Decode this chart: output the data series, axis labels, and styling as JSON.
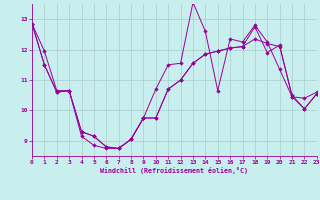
{
  "xlabel": "Windchill (Refroidissement éolien,°C)",
  "bg_color": "#c8eeee",
  "line_color": "#990099",
  "grid_color": "#aacccc",
  "xlim": [
    0,
    23
  ],
  "ylim": [
    8.5,
    13.5
  ],
  "xticks": [
    0,
    1,
    2,
    3,
    4,
    5,
    6,
    7,
    8,
    9,
    10,
    11,
    12,
    13,
    14,
    15,
    16,
    17,
    18,
    19,
    20,
    21,
    22,
    23
  ],
  "yticks": [
    9,
    10,
    11,
    12,
    13
  ],
  "series": [
    [
      12.85,
      11.95,
      10.65,
      10.65,
      9.15,
      8.85,
      8.75,
      8.75,
      9.05,
      9.75,
      10.7,
      11.5,
      11.55,
      13.55,
      12.6,
      10.65,
      12.35,
      12.25,
      12.8,
      12.25,
      11.35,
      10.45,
      10.4,
      10.6
    ],
    [
      12.85,
      11.5,
      10.6,
      10.65,
      9.3,
      9.15,
      8.8,
      8.75,
      9.05,
      9.75,
      9.75,
      10.7,
      11.0,
      11.55,
      11.85,
      11.95,
      12.05,
      12.1,
      12.35,
      12.2,
      12.1,
      10.5,
      10.05,
      10.55
    ],
    [
      12.85,
      11.5,
      10.6,
      10.65,
      9.3,
      9.15,
      8.8,
      8.75,
      9.05,
      9.75,
      9.75,
      10.7,
      11.0,
      11.55,
      11.85,
      11.95,
      12.05,
      12.1,
      12.75,
      11.9,
      12.15,
      10.45,
      10.05,
      10.55
    ]
  ],
  "marker_size": 1.8,
  "line_width": 0.7,
  "tick_labelsize": 4.5,
  "xlabel_fontsize": 4.8
}
